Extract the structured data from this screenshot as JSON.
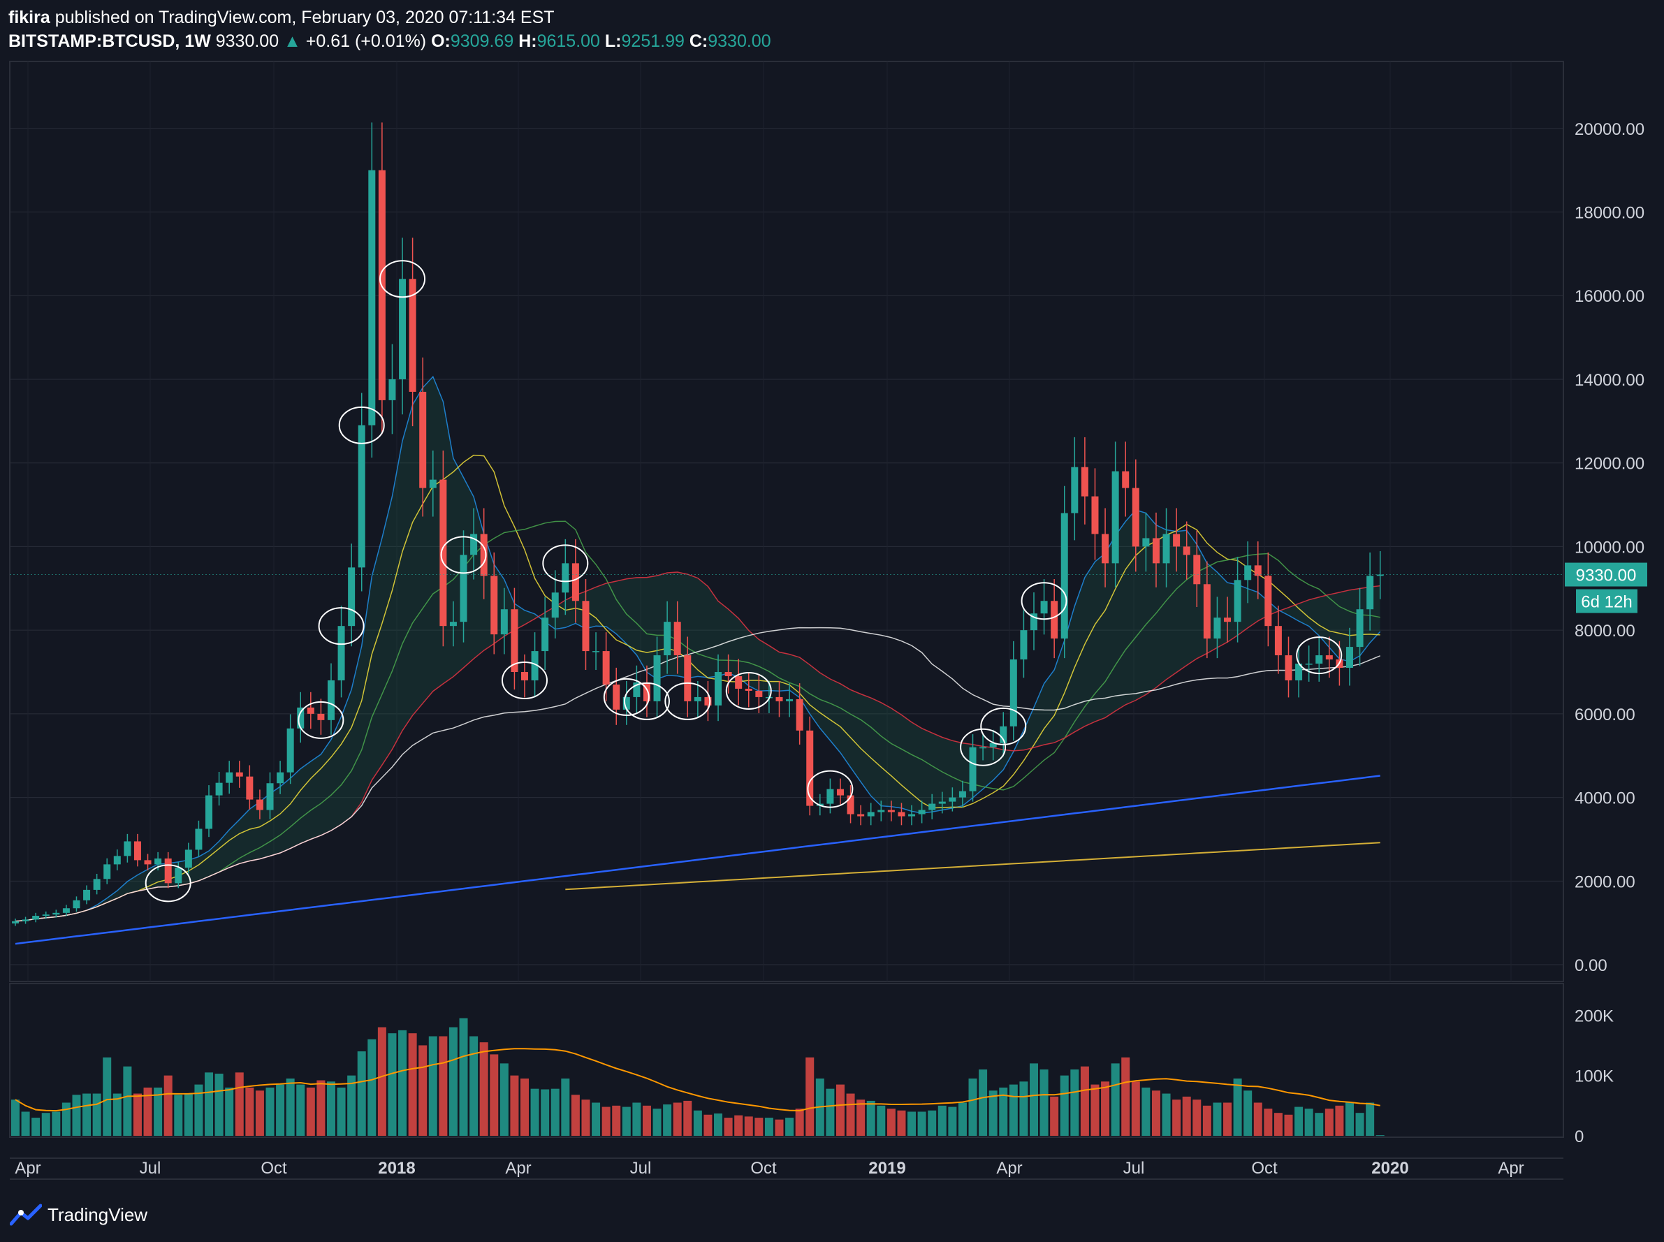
{
  "header": {
    "author": "fikira",
    "published": "published on TradingView.com, February 03, 2020 07:11:34 EST",
    "symbol": "BITSTAMP:BTCUSD, 1W",
    "last": "9330.00",
    "change_arrow": "▲",
    "change": "+0.61 (+0.01%)",
    "o_label": "O:",
    "o": "9309.69",
    "h_label": "H:",
    "h": "9615.00",
    "l_label": "L:",
    "l": "9251.99",
    "c_label": "C:",
    "c": "9330.00"
  },
  "price_tag": "9330.00",
  "countdown_tag": "6d 12h",
  "footer": {
    "brand": "TradingView",
    "logo_icon": "tradingview-logo-icon"
  },
  "colors": {
    "background": "#131722",
    "up": "#26a69a",
    "down": "#ef5350",
    "vol_up": "#1f8a80",
    "vol_down": "#c2413f",
    "vol_ma": "#ff9800"
  },
  "chart_data": {
    "type": "candlestick",
    "symbol": "BITSTAMP:BTCUSD",
    "interval": "1W",
    "price_axis": {
      "ylim": [
        -400,
        21600
      ],
      "ticks": [
        "0.00",
        "2000.00",
        "4000.00",
        "6000.00",
        "8000.00",
        "10000.00",
        "12000.00",
        "14000.00",
        "16000.00",
        "18000.00",
        "20000.00"
      ]
    },
    "volume_axis": {
      "ylim": [
        0,
        220000
      ],
      "ticks": [
        "0",
        "100K",
        "200K"
      ]
    },
    "time_axis": [
      {
        "label": "Apr",
        "bold": false
      },
      {
        "label": "Jul",
        "bold": false
      },
      {
        "label": "Oct",
        "bold": false
      },
      {
        "label": "2018",
        "bold": true
      },
      {
        "label": "Apr",
        "bold": false
      },
      {
        "label": "Jul",
        "bold": false
      },
      {
        "label": "Oct",
        "bold": false
      },
      {
        "label": "2019",
        "bold": true
      },
      {
        "label": "Apr",
        "bold": false
      },
      {
        "label": "Jul",
        "bold": false
      },
      {
        "label": "Oct",
        "bold": false
      },
      {
        "label": "2020",
        "bold": true
      },
      {
        "label": "Apr",
        "bold": false
      }
    ],
    "closes": [
      1040,
      1080,
      1170,
      1200,
      1240,
      1350,
      1540,
      1790,
      2050,
      2400,
      2600,
      2950,
      2500,
      2400,
      2540,
      1950,
      2320,
      2750,
      3250,
      4050,
      4350,
      4600,
      4500,
      3950,
      3700,
      4340,
      4600,
      5650,
      6150,
      6000,
      5850,
      6800,
      8100,
      9500,
      12900,
      19000,
      13500,
      14000,
      16400,
      13700,
      11400,
      11600,
      8100,
      8200,
      9800,
      10300,
      9300,
      7900,
      8500,
      7000,
      6800,
      7500,
      8300,
      8900,
      9600,
      8700,
      7500,
      7500,
      6700,
      6100,
      6400,
      6750,
      6300,
      7400,
      8200,
      7400,
      6300,
      6400,
      6200,
      7000,
      6900,
      6600,
      6550,
      6400,
      6400,
      6300,
      6350,
      5600,
      3800,
      3850,
      4200,
      4050,
      3600,
      3550,
      3650,
      3700,
      3650,
      3550,
      3600,
      3700,
      3850,
      3900,
      4000,
      4150,
      5200,
      5200,
      5300,
      5700,
      7300,
      8000,
      8400,
      8700,
      7800,
      10800,
      11900,
      11200,
      10300,
      9600,
      11800,
      11400,
      10000,
      10200,
      9600,
      10300,
      10000,
      9800,
      9100,
      7800,
      8300,
      8200,
      9200,
      9550,
      9300,
      8100,
      7400,
      6800,
      7200,
      7200,
      7400,
      7300,
      7100,
      7600,
      8500,
      9300,
      9330
    ],
    "volume": [
      60000,
      40000,
      30000,
      38000,
      40000,
      55000,
      68000,
      70000,
      70000,
      130000,
      70000,
      115000,
      70000,
      80000,
      80000,
      100000,
      68000,
      70000,
      85000,
      105000,
      103000,
      80000,
      105000,
      80000,
      75000,
      80000,
      85000,
      95000,
      85000,
      80000,
      92000,
      90000,
      80000,
      100000,
      140000,
      160000,
      180000,
      170000,
      175000,
      170000,
      150000,
      165000,
      165000,
      180000,
      195000,
      165000,
      155000,
      135000,
      120000,
      100000,
      95000,
      78000,
      77000,
      78000,
      95000,
      68000,
      60000,
      55000,
      48000,
      50000,
      48000,
      55000,
      50000,
      45000,
      52000,
      55000,
      58000,
      42000,
      35000,
      37000,
      30000,
      34000,
      32000,
      30000,
      30000,
      27000,
      30000,
      45000,
      130000,
      95000,
      78000,
      85000,
      70000,
      60000,
      58000,
      50000,
      45000,
      42000,
      40000,
      40000,
      42000,
      50000,
      48000,
      55000,
      95000,
      110000,
      75000,
      80000,
      85000,
      90000,
      120000,
      110000,
      65000,
      100000,
      110000,
      115000,
      85000,
      90000,
      120000,
      130000,
      90000,
      80000,
      75000,
      70000,
      60000,
      65000,
      60000,
      50000,
      55000,
      55000,
      95000,
      75000,
      55000,
      45000,
      38000,
      35000,
      48000,
      45000,
      38000,
      45000,
      50000,
      55000,
      38000,
      55000,
      1000
    ],
    "indicators": [
      {
        "type": "Bollinger-like band / EMA ribbon",
        "colors": [
          "#2196f3",
          "#ffeb3b",
          "#4caf50",
          "#f23645",
          "#ffffff"
        ]
      },
      {
        "type": "long SMA",
        "color": "#2962ff"
      },
      {
        "type": "long SMA",
        "color": "#d4af37"
      },
      {
        "type": "volume MA",
        "color": "#ff9800"
      }
    ],
    "annotations": "white ellipses highlighting candles touching the moving-average ribbon"
  }
}
